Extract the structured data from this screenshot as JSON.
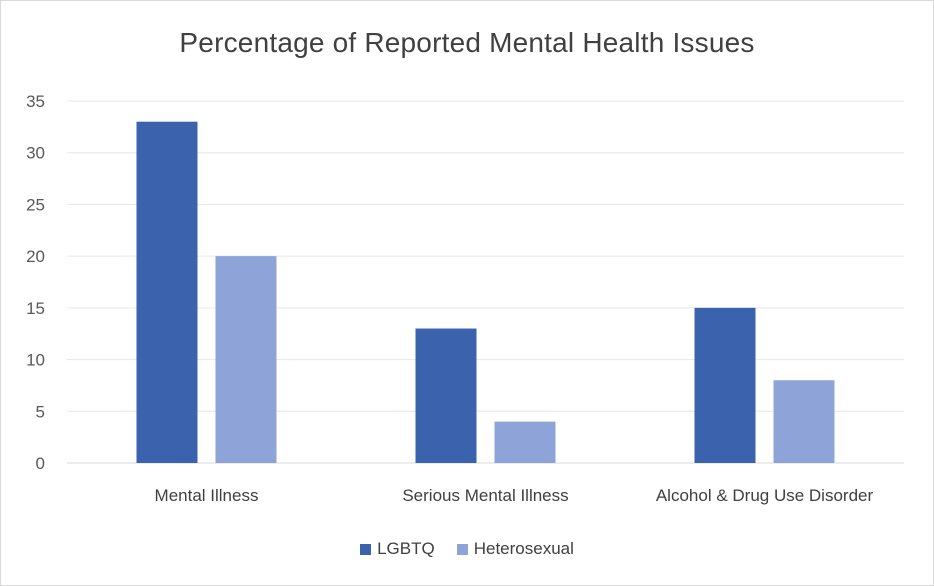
{
  "chart_data": {
    "type": "bar",
    "title": "Percentage of Reported Mental Health Issues",
    "xlabel": "",
    "ylabel": "",
    "categories": [
      "Mental Illness",
      "Serious Mental Illness",
      "Alcohol & Drug Use Disorder"
    ],
    "series": [
      {
        "name": "LGBTQ",
        "values": [
          33,
          13,
          15
        ],
        "color": "#3b63ad"
      },
      {
        "name": "Heterosexual",
        "values": [
          20,
          4,
          8
        ],
        "color": "#8ea4d8"
      }
    ],
    "ylim": [
      0,
      35
    ],
    "yticks": [
      "0",
      "5",
      "10",
      "15",
      "20",
      "25",
      "30",
      "35"
    ],
    "grid": true,
    "legend_position": "bottom"
  }
}
